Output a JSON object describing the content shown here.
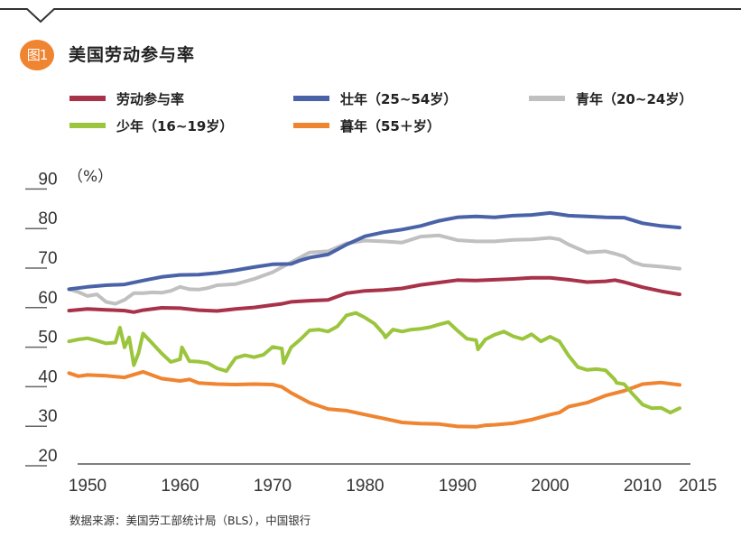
{
  "header": {
    "badge": "图1",
    "title": "美国劳动参与率"
  },
  "source": "数据来源：美国劳工部统计局（BLS），中国银行",
  "chart_data": {
    "type": "line",
    "title": "美国劳动参与率",
    "xlabel": "",
    "ylabel": "（%）",
    "ylim": [
      20,
      90
    ],
    "xlim": [
      1950,
      2015
    ],
    "yticks": [
      "90",
      "80",
      "70",
      "60",
      "50",
      "40",
      "30",
      "20"
    ],
    "ytick_values": [
      90,
      80,
      70,
      60,
      50,
      40,
      30,
      20
    ],
    "xticks": [
      "1950",
      "1960",
      "1970",
      "1980",
      "1990",
      "2000",
      "2010",
      "2015"
    ],
    "xtick_values": [
      1950,
      1960,
      1970,
      1980,
      1990,
      2000,
      2010,
      2015
    ],
    "grid": false,
    "legend_position": "top",
    "series": [
      {
        "name": "劳动参与率",
        "color": "#a8324a",
        "x": [
          1948,
          1950,
          1952,
          1954,
          1955,
          1956,
          1958,
          1960,
          1962,
          1964,
          1966,
          1968,
          1970,
          1971,
          1972,
          1974,
          1976,
          1978,
          1980,
          1982,
          1984,
          1986,
          1988,
          1990,
          1992,
          1994,
          1996,
          1998,
          2000,
          2002,
          2004,
          2006,
          2007,
          2008,
          2010,
          2012,
          2014
        ],
        "values": [
          58.8,
          59.2,
          59.0,
          58.8,
          58.4,
          58.9,
          59.5,
          59.4,
          58.9,
          58.7,
          59.2,
          59.6,
          60.2,
          60.5,
          61.0,
          61.3,
          61.5,
          63.2,
          63.8,
          64.0,
          64.4,
          65.3,
          65.9,
          66.5,
          66.4,
          66.6,
          66.8,
          67.1,
          67.1,
          66.6,
          66.0,
          66.2,
          66.5,
          66.0,
          64.7,
          63.7,
          62.9
        ]
      },
      {
        "name": "壮年（25~54岁）",
        "color": "#4a63a8",
        "x": [
          1948,
          1950,
          1952,
          1954,
          1956,
          1958,
          1960,
          1962,
          1964,
          1966,
          1968,
          1970,
          1972,
          1973,
          1974,
          1976,
          1978,
          1980,
          1982,
          1984,
          1986,
          1988,
          1990,
          1992,
          1994,
          1996,
          1998,
          2000,
          2002,
          2004,
          2006,
          2008,
          2010,
          2012,
          2014
        ],
        "values": [
          64.2,
          64.8,
          65.2,
          65.4,
          66.4,
          67.3,
          67.8,
          67.9,
          68.3,
          69.0,
          69.8,
          70.5,
          70.6,
          71.5,
          72.2,
          73.0,
          75.5,
          77.6,
          78.6,
          79.3,
          80.2,
          81.5,
          82.4,
          82.6,
          82.4,
          82.8,
          83.0,
          83.5,
          82.8,
          82.6,
          82.4,
          82.3,
          80.9,
          80.2,
          79.8
        ]
      },
      {
        "name": "青年（20~24岁）",
        "color": "#c0c0c0",
        "x": [
          1948,
          1949,
          1950,
          1951,
          1952,
          1953,
          1954,
          1955,
          1956,
          1957,
          1958,
          1959,
          1960,
          1961,
          1962,
          1963,
          1964,
          1966,
          1968,
          1970,
          1972,
          1974,
          1976,
          1978,
          1980,
          1982,
          1984,
          1986,
          1988,
          1990,
          1992,
          1994,
          1996,
          1998,
          2000,
          2001,
          2002,
          2003,
          2004,
          2006,
          2007,
          2008,
          2009,
          2010,
          2012,
          2014
        ],
        "values": [
          64.2,
          63.5,
          62.5,
          62.9,
          61.0,
          60.5,
          61.5,
          63.2,
          63.2,
          63.4,
          63.3,
          63.8,
          64.8,
          64.2,
          64.1,
          64.5,
          65.2,
          65.5,
          66.8,
          68.5,
          71.0,
          73.5,
          73.8,
          75.8,
          76.5,
          76.3,
          76.0,
          77.5,
          77.8,
          76.6,
          76.3,
          76.3,
          76.7,
          76.8,
          77.2,
          76.8,
          75.5,
          74.5,
          73.5,
          73.8,
          73.2,
          72.5,
          71.0,
          70.3,
          69.9,
          69.4
        ]
      },
      {
        "name": "少年（16~19岁）",
        "color": "#9bc53d",
        "x": [
          1948,
          1949,
          1950,
          1951,
          1952,
          1953,
          1953.5,
          1954,
          1954.5,
          1955,
          1955.5,
          1956,
          1957,
          1958,
          1959,
          1960,
          1960.2,
          1961,
          1962,
          1963,
          1964,
          1965,
          1966,
          1967,
          1968,
          1969,
          1970,
          1971,
          1971.2,
          1972,
          1973,
          1974,
          1975,
          1976,
          1977,
          1978,
          1979,
          1980,
          1981,
          1982,
          1982.2,
          1983,
          1984,
          1985,
          1986,
          1987,
          1988,
          1989,
          1990,
          1991,
          1992,
          1992.2,
          1993,
          1994,
          1995,
          1996,
          1997,
          1998,
          1999,
          2000,
          2001,
          2002,
          2003,
          2004,
          2005,
          2006,
          2007,
          2007.2,
          2008,
          2009,
          2010,
          2011,
          2012,
          2013,
          2014
        ],
        "values": [
          51.0,
          51.5,
          51.8,
          51.2,
          50.5,
          50.7,
          54.5,
          49.5,
          52.0,
          45.0,
          48.0,
          53.0,
          50.5,
          48.0,
          45.8,
          46.5,
          49.5,
          46.0,
          45.9,
          45.5,
          44.2,
          43.5,
          46.8,
          47.5,
          47.0,
          47.6,
          49.6,
          49.2,
          45.5,
          49.5,
          51.5,
          53.8,
          54.0,
          53.5,
          54.8,
          57.6,
          58.2,
          57.0,
          55.5,
          52.9,
          52.0,
          54.0,
          53.5,
          54.0,
          54.2,
          54.6,
          55.3,
          55.9,
          53.7,
          51.7,
          51.3,
          49.0,
          51.5,
          52.7,
          53.5,
          52.3,
          51.6,
          52.8,
          51.0,
          52.2,
          51.0,
          47.4,
          44.5,
          43.8,
          44.0,
          43.7,
          41.3,
          40.5,
          40.2,
          37.5,
          35.0,
          34.1,
          34.2,
          33.0,
          34.1
        ]
      },
      {
        "name": "暮年（55+岁）",
        "color": "#ef8431",
        "x": [
          1948,
          1949,
          1950,
          1952,
          1954,
          1956,
          1958,
          1960,
          1961,
          1962,
          1964,
          1966,
          1968,
          1970,
          1971,
          1972,
          1974,
          1976,
          1978,
          1980,
          1982,
          1984,
          1986,
          1988,
          1990,
          1992,
          1993,
          1994,
          1996,
          1998,
          2000,
          2001,
          2002,
          2004,
          2006,
          2008,
          2010,
          2012,
          2014
        ],
        "values": [
          43.0,
          42.2,
          42.5,
          42.3,
          41.9,
          43.3,
          41.6,
          41.0,
          41.4,
          40.5,
          40.2,
          40.1,
          40.2,
          40.1,
          39.5,
          38.0,
          35.5,
          33.9,
          33.5,
          32.5,
          31.5,
          30.5,
          30.2,
          30.1,
          29.5,
          29.4,
          29.8,
          29.9,
          30.3,
          31.2,
          32.5,
          33.0,
          34.5,
          35.5,
          37.3,
          38.5,
          40.2,
          40.6,
          40.0
        ]
      }
    ]
  },
  "legend": [
    {
      "label": "劳动参与率",
      "color": "#a8324a"
    },
    {
      "label": "壮年（25~54岁）",
      "color": "#4a63a8"
    },
    {
      "label": "青年（20~24岁）",
      "color": "#c0c0c0"
    },
    {
      "label": "少年（16~19岁）",
      "color": "#9bc53d"
    },
    {
      "label": "暮年（55＋岁）",
      "color": "#ef8431"
    }
  ]
}
